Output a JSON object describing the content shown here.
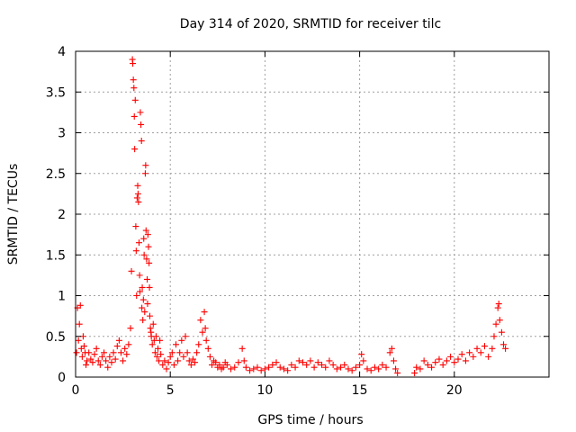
{
  "chart_data": {
    "type": "scatter",
    "title": "Day 314 of 2020, SRMTID for receiver tilc",
    "xlabel": "GPS time / hours",
    "ylabel": "SRMTID / TECUs",
    "xlim": [
      0,
      25
    ],
    "ylim": [
      0,
      4
    ],
    "xticks": [
      0,
      5,
      10,
      15,
      20
    ],
    "yticks": [
      0,
      0.5,
      1,
      1.5,
      2,
      2.5,
      3,
      3.5,
      4
    ],
    "xtick_labels": [
      "0",
      "5",
      "10",
      "15",
      "20"
    ],
    "ytick_labels": [
      "0",
      "0.5",
      "1",
      "1.5",
      "2",
      "2.5",
      "3",
      "3.5",
      "4"
    ],
    "grid": true,
    "marker": "plus",
    "series": [
      {
        "color": "#ff0000",
        "points": [
          [
            0.05,
            0.3
          ],
          [
            0.1,
            0.85
          ],
          [
            0.15,
            0.45
          ],
          [
            0.2,
            0.65
          ],
          [
            0.25,
            0.88
          ],
          [
            0.3,
            0.35
          ],
          [
            0.35,
            0.25
          ],
          [
            0.4,
            0.5
          ],
          [
            0.45,
            0.38
          ],
          [
            0.5,
            0.3
          ],
          [
            0.55,
            0.15
          ],
          [
            0.6,
            0.2
          ],
          [
            0.7,
            0.3
          ],
          [
            0.8,
            0.22
          ],
          [
            0.9,
            0.18
          ],
          [
            1.0,
            0.28
          ],
          [
            1.1,
            0.35
          ],
          [
            1.2,
            0.2
          ],
          [
            1.3,
            0.15
          ],
          [
            1.4,
            0.25
          ],
          [
            1.5,
            0.3
          ],
          [
            1.6,
            0.2
          ],
          [
            1.7,
            0.12
          ],
          [
            1.8,
            0.25
          ],
          [
            1.9,
            0.18
          ],
          [
            2.0,
            0.3
          ],
          [
            2.1,
            0.22
          ],
          [
            2.2,
            0.38
          ],
          [
            2.3,
            0.45
          ],
          [
            2.4,
            0.3
          ],
          [
            2.5,
            0.2
          ],
          [
            2.6,
            0.35
          ],
          [
            2.7,
            0.28
          ],
          [
            2.8,
            0.4
          ],
          [
            2.9,
            0.6
          ],
          [
            2.95,
            1.3
          ],
          [
            3.0,
            3.9
          ],
          [
            3.02,
            3.85
          ],
          [
            3.05,
            3.65
          ],
          [
            3.08,
            3.55
          ],
          [
            3.1,
            3.2
          ],
          [
            3.12,
            2.8
          ],
          [
            3.15,
            3.4
          ],
          [
            3.18,
            1.85
          ],
          [
            3.2,
            1.55
          ],
          [
            3.22,
            1.0
          ],
          [
            3.25,
            2.2
          ],
          [
            3.28,
            2.35
          ],
          [
            3.3,
            2.25
          ],
          [
            3.32,
            2.15
          ],
          [
            3.35,
            1.65
          ],
          [
            3.38,
            1.25
          ],
          [
            3.4,
            1.05
          ],
          [
            3.42,
            3.25
          ],
          [
            3.45,
            3.1
          ],
          [
            3.48,
            2.9
          ],
          [
            3.5,
            0.85
          ],
          [
            3.52,
            1.1
          ],
          [
            3.55,
            0.7
          ],
          [
            3.58,
            0.95
          ],
          [
            3.6,
            1.7
          ],
          [
            3.62,
            1.5
          ],
          [
            3.65,
            0.8
          ],
          [
            3.68,
            2.5
          ],
          [
            3.7,
            2.6
          ],
          [
            3.72,
            1.8
          ],
          [
            3.75,
            1.45
          ],
          [
            3.78,
            1.2
          ],
          [
            3.8,
            0.9
          ],
          [
            3.82,
            1.75
          ],
          [
            3.85,
            1.6
          ],
          [
            3.88,
            1.4
          ],
          [
            3.9,
            1.1
          ],
          [
            3.92,
            0.75
          ],
          [
            3.95,
            0.6
          ],
          [
            3.98,
            0.55
          ],
          [
            4.0,
            0.5
          ],
          [
            4.05,
            0.4
          ],
          [
            4.1,
            0.65
          ],
          [
            4.15,
            0.45
          ],
          [
            4.2,
            0.3
          ],
          [
            4.25,
            0.5
          ],
          [
            4.3,
            0.25
          ],
          [
            4.35,
            0.35
          ],
          [
            4.4,
            0.2
          ],
          [
            4.45,
            0.45
          ],
          [
            4.5,
            0.28
          ],
          [
            4.6,
            0.15
          ],
          [
            4.7,
            0.2
          ],
          [
            4.8,
            0.1
          ],
          [
            4.9,
            0.18
          ],
          [
            5.0,
            0.25
          ],
          [
            5.1,
            0.3
          ],
          [
            5.2,
            0.15
          ],
          [
            5.3,
            0.4
          ],
          [
            5.4,
            0.2
          ],
          [
            5.5,
            0.3
          ],
          [
            5.6,
            0.45
          ],
          [
            5.7,
            0.25
          ],
          [
            5.8,
            0.5
          ],
          [
            5.9,
            0.3
          ],
          [
            6.0,
            0.2
          ],
          [
            6.1,
            0.15
          ],
          [
            6.2,
            0.22
          ],
          [
            6.3,
            0.18
          ],
          [
            6.4,
            0.3
          ],
          [
            6.5,
            0.4
          ],
          [
            6.6,
            0.7
          ],
          [
            6.7,
            0.55
          ],
          [
            6.8,
            0.8
          ],
          [
            6.85,
            0.6
          ],
          [
            6.9,
            0.45
          ],
          [
            7.0,
            0.35
          ],
          [
            7.1,
            0.25
          ],
          [
            7.2,
            0.15
          ],
          [
            7.3,
            0.2
          ],
          [
            7.4,
            0.18
          ],
          [
            7.5,
            0.12
          ],
          [
            7.6,
            0.15
          ],
          [
            7.7,
            0.1
          ],
          [
            7.8,
            0.12
          ],
          [
            7.9,
            0.18
          ],
          [
            8.0,
            0.15
          ],
          [
            8.2,
            0.1
          ],
          [
            8.4,
            0.12
          ],
          [
            8.6,
            0.18
          ],
          [
            8.8,
            0.35
          ],
          [
            8.9,
            0.2
          ],
          [
            9.0,
            0.12
          ],
          [
            9.2,
            0.08
          ],
          [
            9.4,
            0.1
          ],
          [
            9.6,
            0.12
          ],
          [
            9.8,
            0.08
          ],
          [
            10.0,
            0.1
          ],
          [
            10.2,
            0.12
          ],
          [
            10.4,
            0.15
          ],
          [
            10.6,
            0.18
          ],
          [
            10.8,
            0.12
          ],
          [
            11.0,
            0.1
          ],
          [
            11.2,
            0.08
          ],
          [
            11.4,
            0.15
          ],
          [
            11.6,
            0.12
          ],
          [
            11.8,
            0.2
          ],
          [
            12.0,
            0.18
          ],
          [
            12.2,
            0.15
          ],
          [
            12.4,
            0.2
          ],
          [
            12.6,
            0.12
          ],
          [
            12.8,
            0.18
          ],
          [
            13.0,
            0.15
          ],
          [
            13.2,
            0.12
          ],
          [
            13.4,
            0.2
          ],
          [
            13.6,
            0.15
          ],
          [
            13.8,
            0.1
          ],
          [
            14.0,
            0.12
          ],
          [
            14.2,
            0.15
          ],
          [
            14.4,
            0.1
          ],
          [
            14.6,
            0.08
          ],
          [
            14.8,
            0.12
          ],
          [
            15.0,
            0.15
          ],
          [
            15.1,
            0.28
          ],
          [
            15.2,
            0.2
          ],
          [
            15.4,
            0.1
          ],
          [
            15.6,
            0.08
          ],
          [
            15.8,
            0.12
          ],
          [
            16.0,
            0.1
          ],
          [
            16.2,
            0.15
          ],
          [
            16.4,
            0.12
          ],
          [
            16.6,
            0.3
          ],
          [
            16.7,
            0.35
          ],
          [
            16.8,
            0.2
          ],
          [
            16.9,
            0.1
          ],
          [
            17.0,
            0.05
          ],
          [
            17.9,
            0.05
          ],
          [
            18.0,
            0.12
          ],
          [
            18.2,
            0.1
          ],
          [
            18.4,
            0.2
          ],
          [
            18.6,
            0.15
          ],
          [
            18.8,
            0.12
          ],
          [
            19.0,
            0.18
          ],
          [
            19.2,
            0.22
          ],
          [
            19.4,
            0.15
          ],
          [
            19.6,
            0.2
          ],
          [
            19.8,
            0.25
          ],
          [
            20.0,
            0.18
          ],
          [
            20.2,
            0.22
          ],
          [
            20.4,
            0.28
          ],
          [
            20.6,
            0.2
          ],
          [
            20.8,
            0.3
          ],
          [
            21.0,
            0.25
          ],
          [
            21.2,
            0.35
          ],
          [
            21.4,
            0.3
          ],
          [
            21.6,
            0.38
          ],
          [
            21.8,
            0.25
          ],
          [
            22.0,
            0.35
          ],
          [
            22.1,
            0.5
          ],
          [
            22.2,
            0.65
          ],
          [
            22.3,
            0.85
          ],
          [
            22.35,
            0.9
          ],
          [
            22.4,
            0.7
          ],
          [
            22.5,
            0.55
          ],
          [
            22.6,
            0.4
          ],
          [
            22.7,
            0.35
          ]
        ]
      }
    ]
  }
}
